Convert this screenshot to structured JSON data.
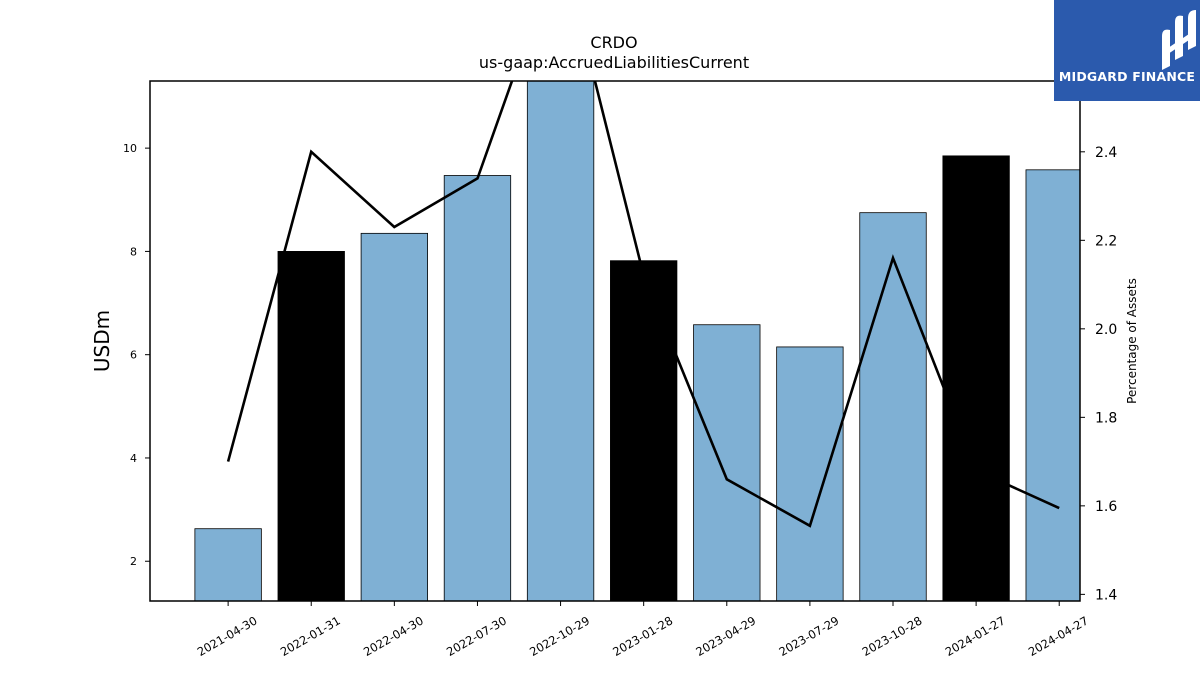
{
  "chart_data": {
    "type": "bar",
    "title": "CRDO",
    "subtitle": "us-gaap:AccruedLiabilitiesCurrent",
    "ylabel": "USDm",
    "y2label": "Percentage of Assets",
    "categories": [
      "2021-04-30",
      "2022-01-31",
      "2022-04-30",
      "2022-07-30",
      "2022-10-29",
      "2023-01-28",
      "2023-04-29",
      "2023-07-29",
      "2023-10-28",
      "2024-01-27",
      "2024-04-27"
    ],
    "series": [
      {
        "values": [
          2.63,
          8.0,
          8.35,
          9.47,
          11.6,
          7.82,
          6.58,
          6.15,
          8.75,
          9.85,
          9.58
        ],
        "colors": [
          "#7fb0d4",
          "#000000",
          "#7fb0d4",
          "#7fb0d4",
          "#7fb0d4",
          "#000000",
          "#7fb0d4",
          "#7fb0d4",
          "#7fb0d4",
          "#000000",
          "#7fb0d4"
        ]
      },
      {
        "values": [
          1.7,
          2.4,
          2.23,
          2.34,
          2.87,
          2.12,
          1.66,
          1.555,
          2.16,
          1.68,
          1.595
        ],
        "color": "#000000"
      }
    ],
    "ylim": [
      1.23,
      11.3
    ],
    "yticks": [
      2,
      4,
      6,
      8,
      10
    ],
    "y2lim": [
      1.385,
      2.56
    ],
    "y2ticks": [
      "1.4",
      "1.6",
      "1.8",
      "2.0",
      "2.2",
      "2.4"
    ],
    "grid": false,
    "legend": "none"
  },
  "logo": {
    "text": "MIDGARD FINANCE",
    "color": "#2b5aad"
  }
}
